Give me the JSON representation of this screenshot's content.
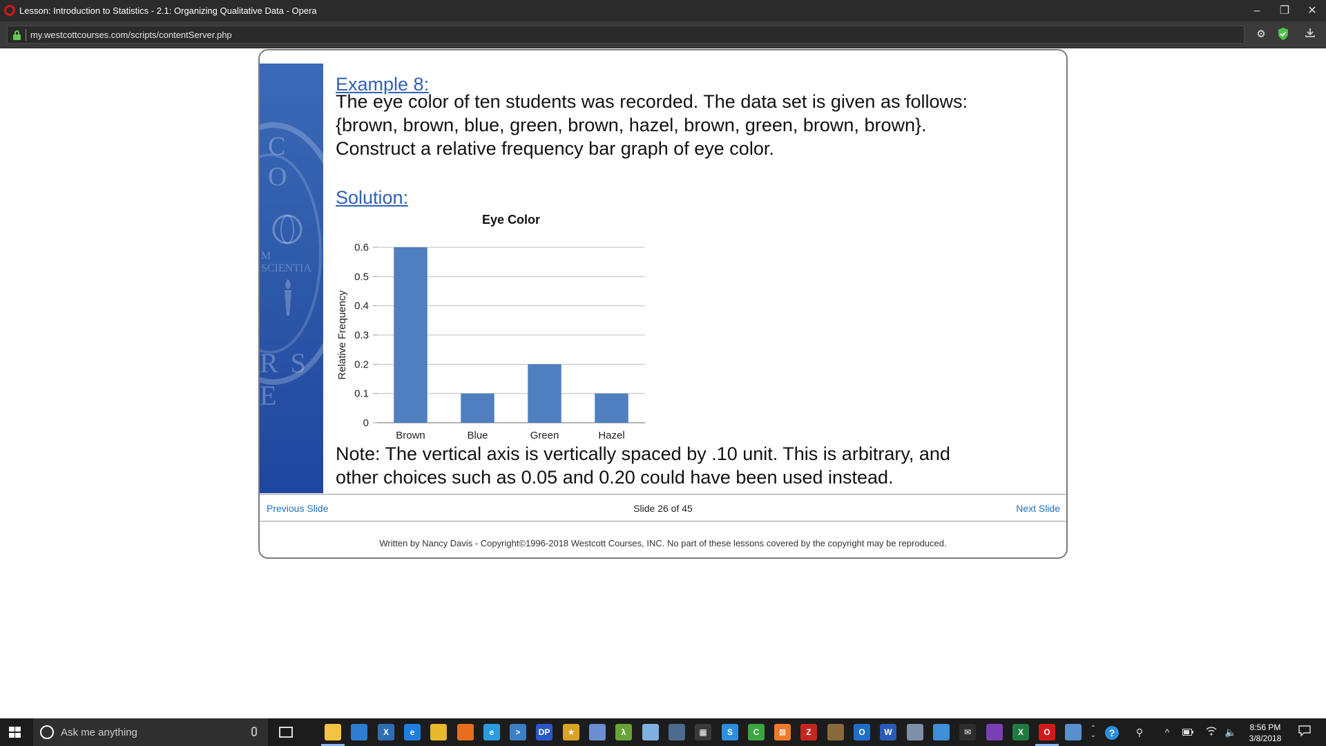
{
  "window": {
    "title": "Lesson: Introduction to Statistics - 2.1: Organizing Qualitative Data - Opera",
    "controls": {
      "minimize": "–",
      "restore": "❐",
      "close": "✕"
    }
  },
  "browser": {
    "url": "my.westcottcourses.com/scripts/contentServer.php",
    "icons": [
      "gear-icon",
      "shield-check-icon",
      "download-icon"
    ]
  },
  "slide": {
    "example_heading": "Example 8:",
    "problem_lines": [
      "The eye color of ten students was recorded.  The data set is given as follows:",
      "{brown, brown, blue, green, brown, hazel, brown, green, brown, brown}.",
      "Construct a relative frequency bar graph of eye color."
    ],
    "solution_heading": "Solution:",
    "note_lines": [
      "Note:  The vertical axis is vertically spaced by .10 unit.  This is arbitrary, and",
      "other choices such as 0.05 and 0.20 could have been used instead."
    ],
    "sidebar_seal_text": {
      "top": "C O",
      "middle": "M SCIENTIA",
      "bottom": "R S E"
    }
  },
  "chart_data": {
    "type": "bar",
    "title": "Eye Color",
    "xlabel": "",
    "ylabel": "Relative Frequency",
    "categories": [
      "Brown",
      "Blue",
      "Green",
      "Hazel"
    ],
    "values": [
      0.6,
      0.1,
      0.2,
      0.1
    ],
    "ylim": [
      0,
      0.6
    ],
    "yticks": [
      "0",
      "0.1",
      "0.2",
      "0.3",
      "0.4",
      "0.5",
      "0.6"
    ],
    "grid": true,
    "bar_color": "#4f7fbf",
    "legend": "none"
  },
  "navigation": {
    "previous": "Previous Slide",
    "counter": "Slide 26 of 45",
    "next": "Next Slide",
    "link_color": "#1a6fc2"
  },
  "footer": {
    "copyright": "Written by Nancy Davis - Copyright©1996-2018 Westcott Courses, INC. No part of these lessons covered by the copyright may be reproduced."
  },
  "taskbar": {
    "search_placeholder": "Ask me anything",
    "apps": [
      {
        "name": "file-explorer-icon",
        "color": "#f5c342",
        "glyph": ""
      },
      {
        "name": "store-icon",
        "color": "#2d7dd2",
        "glyph": ""
      },
      {
        "name": "x-app-icon",
        "color": "#2f6db5",
        "glyph": "X"
      },
      {
        "name": "edge-icon",
        "color": "#1f7fe0",
        "glyph": "e"
      },
      {
        "name": "chrome-icon",
        "color": "#e8b92a",
        "glyph": ""
      },
      {
        "name": "firefox-icon",
        "color": "#e86d1c",
        "glyph": ""
      },
      {
        "name": "ie-icon",
        "color": "#2a9be0",
        "glyph": "e"
      },
      {
        "name": "powershell-icon",
        "color": "#3b7fc4",
        "glyph": ">"
      },
      {
        "name": "dp-app-icon",
        "color": "#2a58c9",
        "glyph": "DP"
      },
      {
        "name": "star-app-icon",
        "color": "#d9a322",
        "glyph": "★"
      },
      {
        "name": "paint-icon",
        "color": "#6b8fd1",
        "glyph": ""
      },
      {
        "name": "lambda-app-icon",
        "color": "#6aa33a",
        "glyph": "λ"
      },
      {
        "name": "notepad-icon",
        "color": "#7fb1e0",
        "glyph": ""
      },
      {
        "name": "network-app-icon",
        "color": "#4d6b8f",
        "glyph": ""
      },
      {
        "name": "calculator-icon",
        "color": "#3a3a3a",
        "glyph": "▦"
      },
      {
        "name": "skype-icon",
        "color": "#2a8fe0",
        "glyph": "S"
      },
      {
        "name": "camtasia-icon",
        "color": "#3ba640",
        "glyph": "C"
      },
      {
        "name": "xampp-icon",
        "color": "#f07a2a",
        "glyph": "⊠"
      },
      {
        "name": "filezilla-icon",
        "color": "#c2281f",
        "glyph": "Z"
      },
      {
        "name": "media-app-icon",
        "color": "#8a6a3a",
        "glyph": ""
      },
      {
        "name": "outlook-icon",
        "color": "#1f6fc9",
        "glyph": "O"
      },
      {
        "name": "word-icon",
        "color": "#2b5bb8",
        "glyph": "W"
      },
      {
        "name": "people-app-icon",
        "color": "#7e8fa8",
        "glyph": ""
      },
      {
        "name": "remote-desktop-icon",
        "color": "#3f8fd9",
        "glyph": ""
      },
      {
        "name": "mail-icon",
        "color": "#2e2e2e",
        "glyph": "✉"
      },
      {
        "name": "visual-studio-icon",
        "color": "#7a3fb5",
        "glyph": ""
      },
      {
        "name": "excel-icon",
        "color": "#1f7a3f",
        "glyph": "X"
      },
      {
        "name": "opera-icon",
        "color": "#d01a1a",
        "glyph": "O"
      },
      {
        "name": "control-panel-icon",
        "color": "#5a8fcf",
        "glyph": ""
      }
    ],
    "clock_time": "8:56 PM",
    "clock_date": "3/8/2018"
  }
}
